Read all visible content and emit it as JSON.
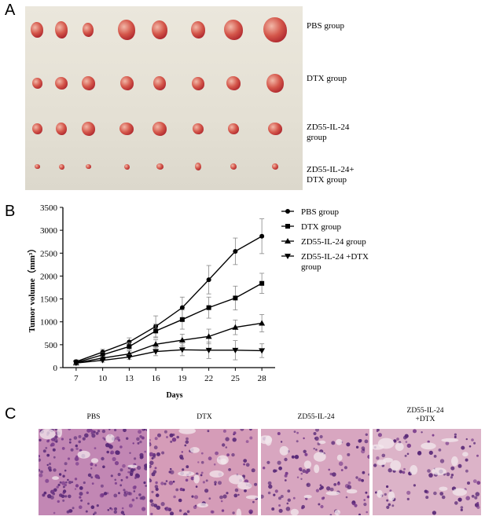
{
  "panels": {
    "a": "A",
    "b": "B",
    "c": "C"
  },
  "photo": {
    "groups": [
      {
        "label": "PBS group",
        "tumor_count": 8
      },
      {
        "label": "DTX group",
        "tumor_count": 8
      },
      {
        "label": "ZD55-IL-24 group",
        "tumor_count": 8
      },
      {
        "label": "ZD55-IL-24+ DTX group",
        "tumor_count": 8
      }
    ]
  },
  "chart_data": {
    "type": "line",
    "title": "",
    "xlabel": "Days",
    "ylabel": "Tumor volume（mm³）",
    "x": [
      7,
      10,
      13,
      16,
      19,
      22,
      25,
      28
    ],
    "xlim": [
      5.5,
      29.5
    ],
    "ylim": [
      0,
      3500
    ],
    "yticks": [
      0,
      500,
      1000,
      1500,
      2000,
      2500,
      3000,
      3500
    ],
    "legend_position": "right",
    "series": [
      {
        "name": "PBS group",
        "marker": "circle",
        "values": [
          130,
          340,
          560,
          900,
          1310,
          1920,
          2540,
          2870
        ],
        "errors": [
          40,
          60,
          90,
          230,
          230,
          310,
          290,
          380
        ]
      },
      {
        "name": "DTX group",
        "marker": "square",
        "values": [
          110,
          280,
          460,
          800,
          1050,
          1310,
          1520,
          1840
        ],
        "errors": [
          30,
          50,
          80,
          150,
          210,
          230,
          260,
          220
        ]
      },
      {
        "name": "ZD55-IL-24 group",
        "marker": "triangle-up",
        "values": [
          100,
          210,
          300,
          510,
          600,
          680,
          880,
          970
        ],
        "errors": [
          30,
          40,
          60,
          100,
          130,
          160,
          160,
          190
        ]
      },
      {
        "name": "ZD55-IL-24 +DTX group",
        "marker": "triangle-down",
        "values": [
          100,
          160,
          230,
          350,
          390,
          380,
          380,
          370
        ],
        "errors": [
          30,
          40,
          50,
          90,
          130,
          180,
          210,
          150
        ]
      }
    ]
  },
  "histology": {
    "panels": [
      {
        "label": "PBS",
        "color": "#c287b4"
      },
      {
        "label": "DTX",
        "color": "#d59cb8"
      },
      {
        "label": "ZD55-IL-24",
        "color": "#d8a6c0"
      },
      {
        "label": "ZD55-IL-24 +DTX",
        "color": "#dcb3c8"
      }
    ]
  }
}
